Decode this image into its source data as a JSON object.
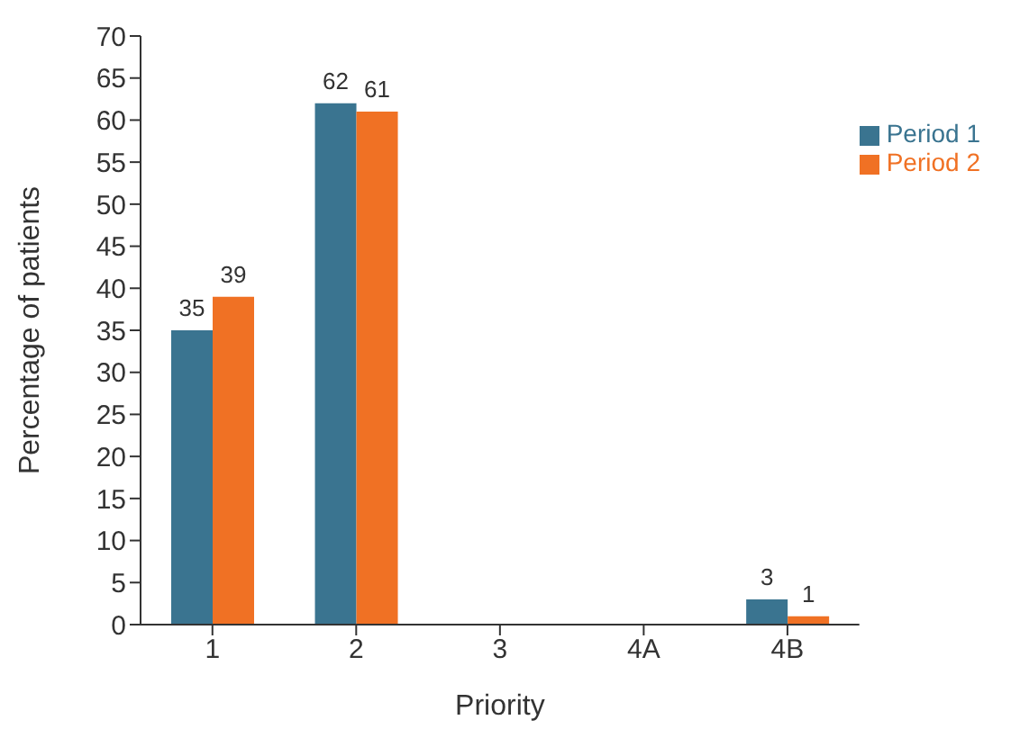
{
  "chart_data": {
    "type": "bar",
    "xlabel": "Priority",
    "ylabel": "Percentage of patients",
    "categories": [
      "1",
      "2",
      "3",
      "4A",
      "4B"
    ],
    "series": [
      {
        "name": "Period 1",
        "color": "#3a7490",
        "values": [
          35,
          62,
          null,
          null,
          3
        ],
        "value_labels": [
          "35",
          "62",
          null,
          null,
          "3"
        ]
      },
      {
        "name": "Period 2",
        "color": "#f07124",
        "values": [
          39,
          61,
          null,
          null,
          1
        ],
        "value_labels": [
          "39",
          "61",
          null,
          null,
          "1"
        ]
      }
    ],
    "ylim": [
      0,
      70
    ],
    "yticks": [
      0,
      5,
      10,
      15,
      20,
      25,
      30,
      35,
      40,
      45,
      50,
      55,
      60,
      65,
      70
    ],
    "grid": false,
    "legend": "top right"
  }
}
